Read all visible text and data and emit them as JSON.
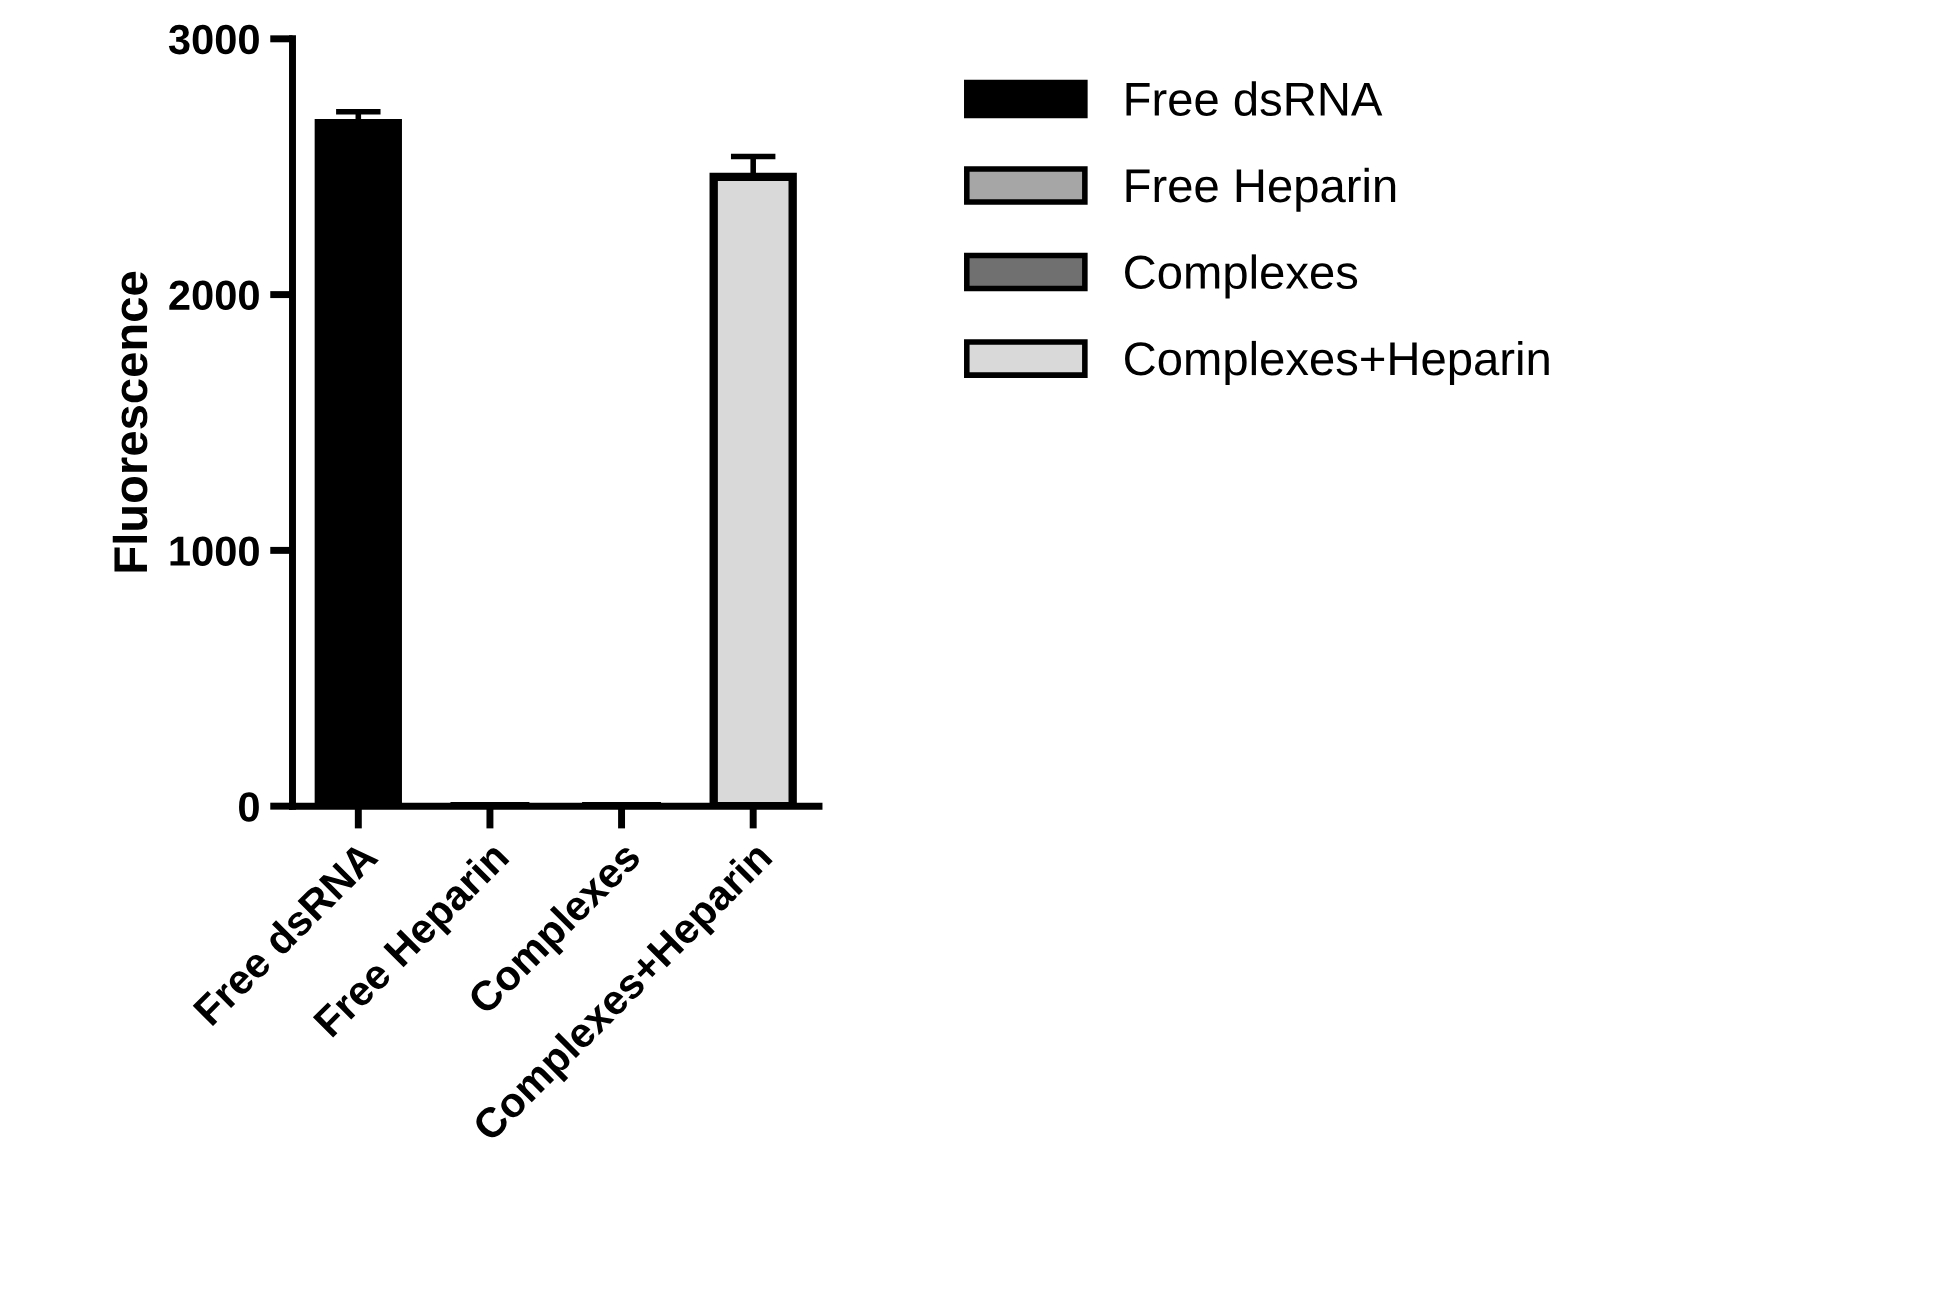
{
  "chart_data": {
    "type": "bar",
    "ylabel": "Fluorescence",
    "categories": [
      "Free dsRNA",
      "Free Heparin",
      "Complexes",
      "Complexes+Heparin"
    ],
    "series": [
      {
        "name": "Free dsRNA",
        "color": "#000000",
        "values": [
          2670,
          null,
          null,
          null
        ],
        "errors": [
          45,
          null,
          null,
          null
        ]
      },
      {
        "name": "Free Heparin",
        "color": "#a6a6a6",
        "values": [
          null,
          0,
          null,
          null
        ]
      },
      {
        "name": "Complexes",
        "color": "#707070",
        "values": [
          null,
          null,
          0,
          null
        ]
      },
      {
        "name": "Complexes+Heparin",
        "color": "#d9d9d9",
        "values": [
          null,
          null,
          null,
          2460
        ],
        "errors": [
          null,
          null,
          null,
          80
        ]
      }
    ],
    "ylim": [
      0,
      3000
    ],
    "yticks": [
      0,
      1000,
      2000,
      3000
    ],
    "grid": false,
    "legend": "right"
  }
}
